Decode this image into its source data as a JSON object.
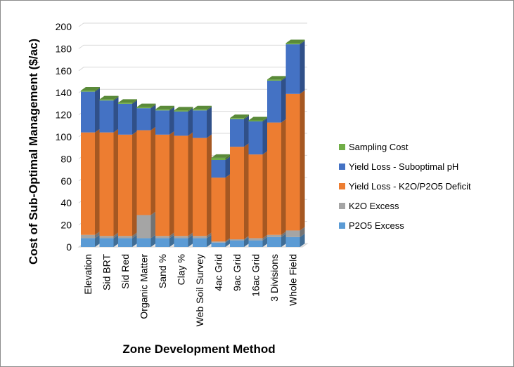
{
  "chart_data": {
    "type": "bar",
    "stacked": true,
    "three_d": true,
    "title": "",
    "xlabel": "Zone Development Method",
    "ylabel": "Cost of Sub-Optimal Management ($/ac)",
    "ylim": [
      0,
      200
    ],
    "yticks": [
      0,
      20,
      40,
      60,
      80,
      100,
      120,
      140,
      160,
      180,
      200
    ],
    "grid": true,
    "legend_position": "right",
    "categories": [
      "Elevation",
      "Sid BRT",
      "Sid Red",
      "Organic Matter",
      "Sand %",
      "Clay %",
      "Web Soil Survey",
      "4ac Grid",
      "9ac Grid",
      "16ac Grid",
      "3 Divisions",
      "Whole Field"
    ],
    "series": [
      {
        "name": "P2O5 Excess",
        "color": "#5b9bd5",
        "values": [
          8,
          8,
          8,
          8,
          8,
          8,
          8,
          4,
          6,
          6,
          9,
          9
        ]
      },
      {
        "name": "K2O Excess",
        "color": "#a5a5a5",
        "values": [
          3,
          2,
          2,
          21,
          2,
          2,
          2,
          1,
          1,
          2,
          2,
          6
        ]
      },
      {
        "name": "Yield Loss - K2O/P2O5 Deficit",
        "color": "#ed7d31",
        "values": [
          93,
          94,
          92,
          77,
          92,
          91,
          89,
          58,
          84,
          76,
          102,
          124
        ]
      },
      {
        "name": "Yield Loss - Suboptimal pH",
        "color": "#4472c4",
        "values": [
          37,
          29,
          28,
          20,
          22,
          22,
          25,
          16,
          25,
          30,
          38,
          45
        ]
      },
      {
        "name": "Sampling Cost",
        "color": "#70ad47",
        "values": [
          1,
          1,
          1,
          1,
          1,
          1,
          1,
          2,
          1,
          1,
          1,
          1
        ]
      }
    ]
  }
}
